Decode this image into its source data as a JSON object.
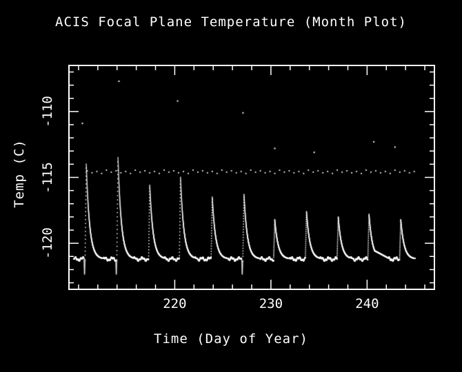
{
  "chart_data": {
    "type": "line",
    "title": "ACIS Focal Plane Temperature (Month Plot)",
    "xlabel": "Time (Day of Year)",
    "ylabel": "Temp (C)",
    "xlim": [
      209,
      247
    ],
    "ylim": [
      -123.5,
      -106.5
    ],
    "xticks": [
      220,
      230,
      240
    ],
    "xtick_minor_step": 2,
    "yticks": [
      -110,
      -115,
      -120
    ],
    "ytick_minor_step": 1,
    "grid": false,
    "legend": false,
    "colors": {
      "background": "#000000",
      "foreground": "#ffffff",
      "trace": "#ffffff"
    },
    "baseline_temp": -121.2,
    "data_start_day": 209.5,
    "data_end_day": 245.0,
    "rise_days": 0.12,
    "decay_tau_days": 0.35,
    "spikes": [
      {
        "day": 210.8,
        "peak": -114.0,
        "undershoot": true
      },
      {
        "day": 214.1,
        "peak": -113.5,
        "undershoot": true
      },
      {
        "day": 217.4,
        "peak": -115.6,
        "undershoot": false
      },
      {
        "day": 220.6,
        "peak": -115.0,
        "undershoot": false
      },
      {
        "day": 223.9,
        "peak": -116.5,
        "undershoot": false
      },
      {
        "day": 227.2,
        "peak": -116.3,
        "undershoot": true
      },
      {
        "day": 230.4,
        "peak": -118.2,
        "undershoot": false
      },
      {
        "day": 233.7,
        "peak": -117.6,
        "undershoot": false
      },
      {
        "day": 237.0,
        "peak": -118.0,
        "undershoot": false
      },
      {
        "day": 240.2,
        "peak": -117.8,
        "undershoot": false
      },
      {
        "day": 243.5,
        "peak": -118.2,
        "undershoot": false
      }
    ],
    "post_spike_bump": {
      "start": 240.6,
      "end": 242.4,
      "temp": -120.5
    },
    "warm_band": {
      "temp_mean": -114.6,
      "days": [
        210.9,
        211.4,
        211.9,
        212.4,
        212.9,
        213.4,
        213.9,
        214.4,
        214.9,
        215.4,
        215.9,
        216.4,
        216.9,
        217.4,
        217.9,
        218.4,
        218.9,
        219.4,
        219.9,
        220.4,
        220.9,
        221.4,
        221.9,
        222.4,
        222.9,
        223.4,
        223.9,
        224.4,
        224.9,
        225.4,
        225.9,
        226.4,
        226.9,
        227.4,
        227.9,
        228.4,
        228.9,
        229.4,
        229.9,
        230.4,
        230.9,
        231.4,
        231.9,
        232.4,
        232.9,
        233.4,
        233.9,
        234.4,
        234.9,
        235.4,
        235.9,
        236.4,
        236.9,
        237.4,
        237.9,
        238.4,
        238.9,
        239.4,
        239.9,
        240.4,
        240.9,
        241.4,
        241.9,
        242.4,
        242.9,
        243.4,
        243.9,
        244.4,
        244.9
      ],
      "temps": [
        -114.5,
        -114.65,
        -114.55,
        -114.7,
        -114.45,
        -114.6,
        -114.5,
        -114.65,
        -114.55,
        -114.7,
        -114.45,
        -114.6,
        -114.5,
        -114.65,
        -114.55,
        -114.7,
        -114.45,
        -114.6,
        -114.5,
        -114.65,
        -114.55,
        -114.7,
        -114.45,
        -114.6,
        -114.5,
        -114.65,
        -114.55,
        -114.7,
        -114.45,
        -114.6,
        -114.5,
        -114.65,
        -114.55,
        -114.7,
        -114.45,
        -114.6,
        -114.5,
        -114.65,
        -114.55,
        -114.7,
        -114.45,
        -114.6,
        -114.5,
        -114.65,
        -114.55,
        -114.7,
        -114.45,
        -114.6,
        -114.5,
        -114.65,
        -114.55,
        -114.7,
        -114.45,
        -114.6,
        -114.5,
        -114.65,
        -114.55,
        -114.7,
        -114.45,
        -114.6,
        -114.5,
        -114.65,
        -114.55,
        -114.7,
        -114.45,
        -114.6,
        -114.5,
        -114.65,
        -114.55
      ]
    },
    "outliers": [
      [
        210.4,
        -110.9
      ],
      [
        214.2,
        -107.7
      ],
      [
        220.3,
        -109.2
      ],
      [
        227.1,
        -110.1
      ],
      [
        230.4,
        -112.8
      ],
      [
        234.5,
        -113.1
      ],
      [
        240.7,
        -112.3
      ],
      [
        242.9,
        -112.7
      ]
    ]
  }
}
